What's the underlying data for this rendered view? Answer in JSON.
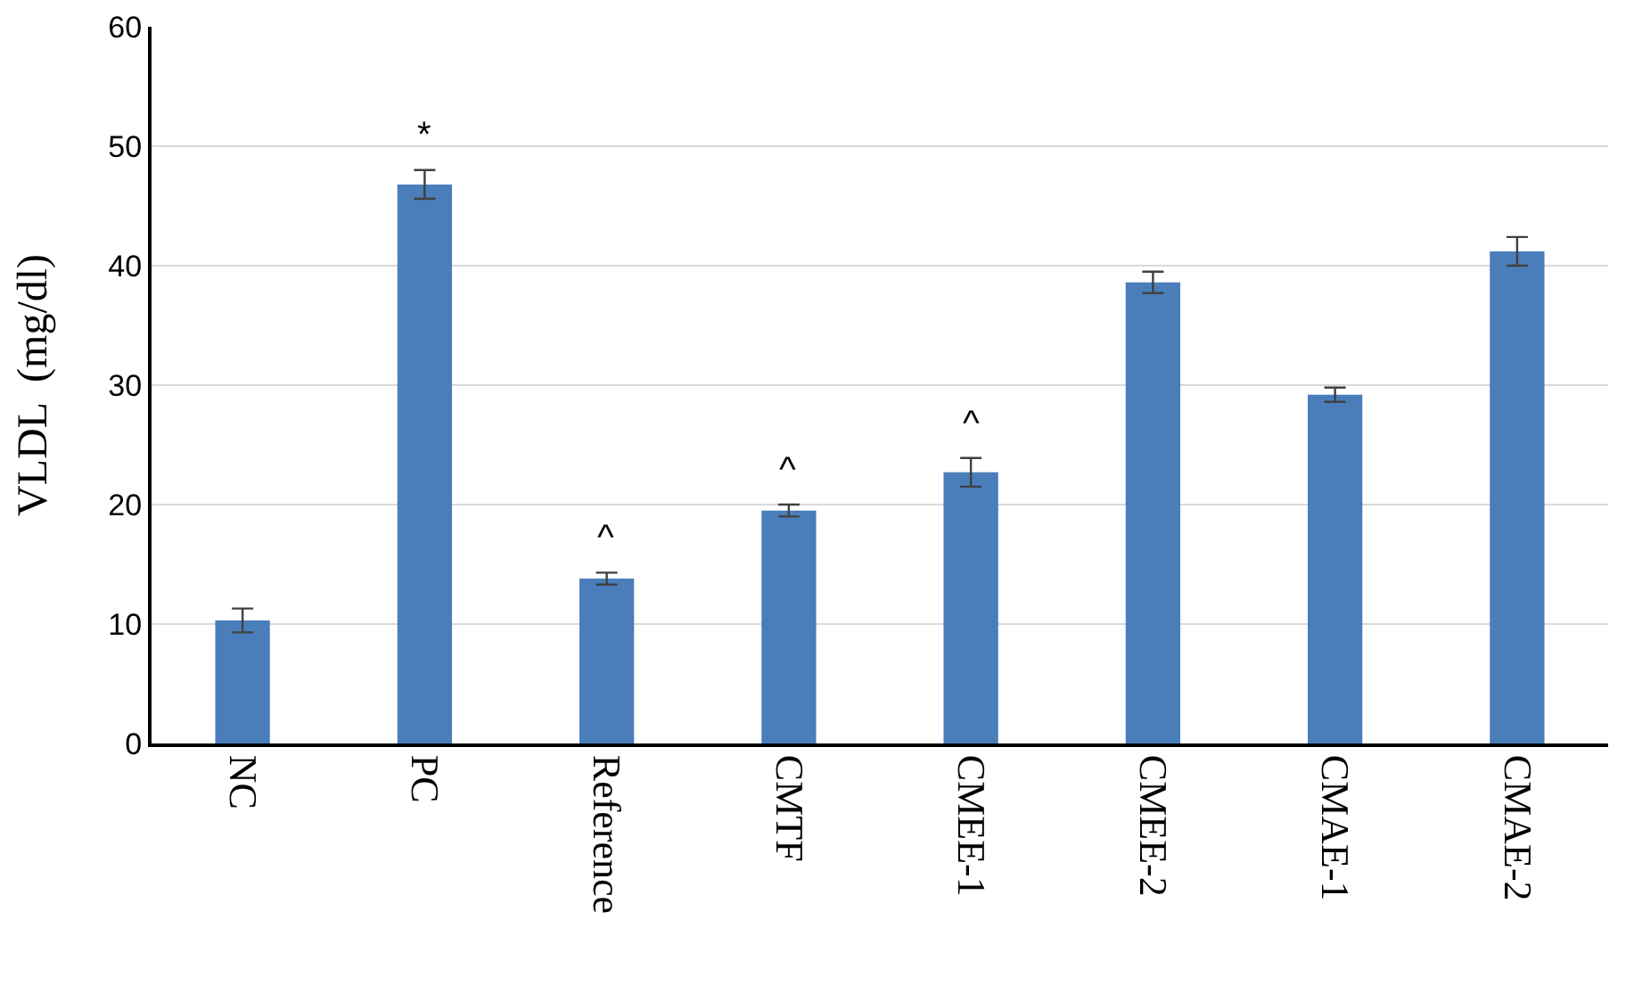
{
  "chart_data": {
    "type": "bar",
    "ylabel": "VLDL  (mg/dl)",
    "categories": [
      "NC",
      "PC",
      "Reference",
      "CMTF",
      "CMEE-1",
      "CMEE-2",
      "CMAE-1",
      "CMAE-2"
    ],
    "values": [
      10.3,
      46.8,
      13.8,
      19.5,
      22.7,
      38.6,
      29.2,
      41.2
    ],
    "errors": [
      1.0,
      1.2,
      0.5,
      0.5,
      1.2,
      0.9,
      0.6,
      1.2
    ],
    "color": "#4a7ebb",
    "ylim": [
      0,
      60
    ],
    "yticks": [
      0,
      10,
      20,
      30,
      40,
      50,
      60
    ],
    "grid": "y",
    "annotations": [
      {
        "text": "*",
        "x": "PC",
        "y": 48.0
      },
      {
        "text": "^",
        "x": "Reference",
        "y": 14.3
      },
      {
        "text": "^",
        "x": "CMTF",
        "y": 20.0
      },
      {
        "text": "^",
        "x": "CMEE-1",
        "y": 23.9
      }
    ]
  }
}
